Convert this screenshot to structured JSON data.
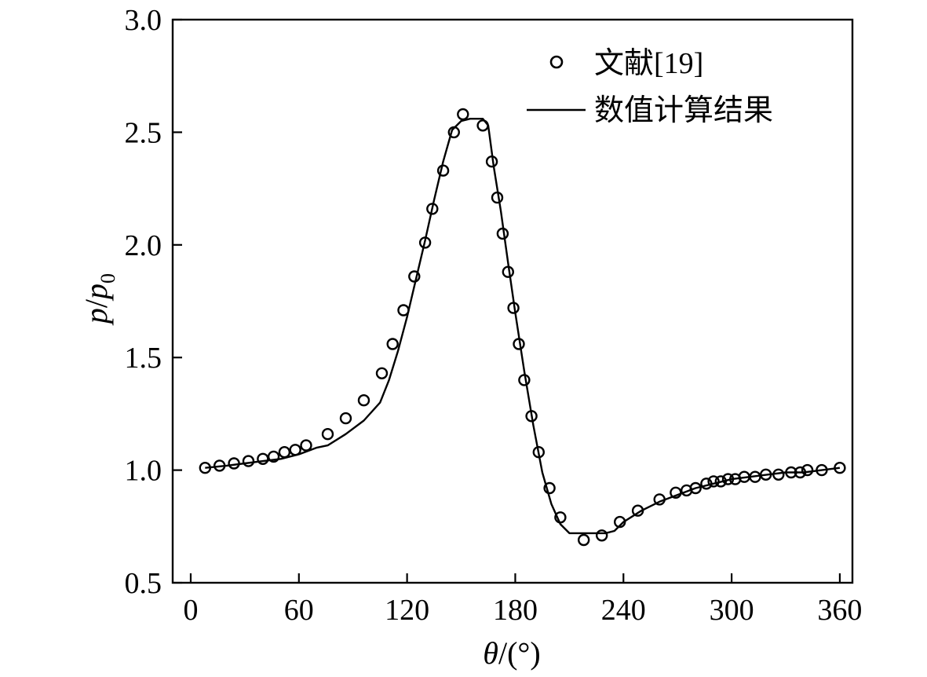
{
  "chart_data": {
    "type": "line",
    "title": "",
    "xlabel": {
      "symbol": "θ",
      "unit": "/(°)"
    },
    "ylabel": {
      "base": "p",
      "slash": "/",
      "denom": "p",
      "sub": "0"
    },
    "xlim": [
      -10,
      367
    ],
    "ylim": [
      0.5,
      3.0
    ],
    "xticks": [
      0,
      60,
      120,
      180,
      240,
      300,
      360
    ],
    "xtick_labels": [
      "0",
      "60",
      "120",
      "180",
      "240",
      "300",
      "360"
    ],
    "yticks": [
      0.5,
      1.0,
      1.5,
      2.0,
      2.5,
      3.0
    ],
    "ytick_labels": [
      "0.5",
      "1.0",
      "1.5",
      "2.0",
      "2.5",
      "3.0"
    ],
    "grid": false,
    "legend_position": "top-right",
    "series": [
      {
        "name": "文献[19]",
        "style": "open-circle",
        "x": [
          8,
          16,
          24,
          32,
          40,
          46,
          52,
          58,
          64,
          76,
          86,
          96,
          106,
          112,
          118,
          124,
          130,
          134,
          140,
          146,
          151,
          162,
          167,
          170,
          173,
          176,
          179,
          182,
          185,
          189,
          193,
          199,
          205,
          218,
          228,
          238,
          248,
          260,
          269,
          275,
          280,
          286,
          290,
          294,
          298,
          302,
          307,
          313,
          319,
          326,
          333,
          338,
          342,
          350,
          360
        ],
        "y": [
          1.01,
          1.02,
          1.03,
          1.04,
          1.05,
          1.06,
          1.08,
          1.09,
          1.11,
          1.16,
          1.23,
          1.31,
          1.43,
          1.56,
          1.71,
          1.86,
          2.01,
          2.16,
          2.33,
          2.5,
          2.58,
          2.53,
          2.37,
          2.21,
          2.05,
          1.88,
          1.72,
          1.56,
          1.4,
          1.24,
          1.08,
          0.92,
          0.79,
          0.69,
          0.71,
          0.77,
          0.82,
          0.87,
          0.9,
          0.91,
          0.92,
          0.94,
          0.95,
          0.95,
          0.96,
          0.96,
          0.97,
          0.97,
          0.98,
          0.98,
          0.99,
          0.99,
          1.0,
          1.0,
          1.01
        ]
      },
      {
        "name": "数值计算结果",
        "style": "solid-line",
        "x": [
          8,
          20,
          30,
          40,
          50,
          60,
          70,
          76,
          86,
          96,
          105,
          110,
          115,
          120,
          125,
          130,
          135,
          140,
          145,
          150,
          155,
          160,
          162,
          165,
          168,
          172,
          176,
          180,
          185,
          190,
          195,
          200,
          205,
          210,
          215,
          220,
          225,
          230,
          235,
          240,
          250,
          260,
          270,
          280,
          290,
          300,
          310,
          320,
          330,
          340,
          350,
          360
        ],
        "y": [
          1.01,
          1.02,
          1.03,
          1.04,
          1.05,
          1.07,
          1.1,
          1.11,
          1.16,
          1.22,
          1.3,
          1.4,
          1.53,
          1.68,
          1.85,
          2.02,
          2.2,
          2.37,
          2.51,
          2.55,
          2.56,
          2.56,
          2.56,
          2.53,
          2.35,
          2.15,
          1.92,
          1.7,
          1.44,
          1.2,
          0.99,
          0.85,
          0.76,
          0.72,
          0.72,
          0.72,
          0.72,
          0.72,
          0.73,
          0.77,
          0.82,
          0.86,
          0.89,
          0.92,
          0.94,
          0.96,
          0.97,
          0.98,
          0.99,
          0.99,
          1.0,
          1.01
        ]
      }
    ]
  }
}
